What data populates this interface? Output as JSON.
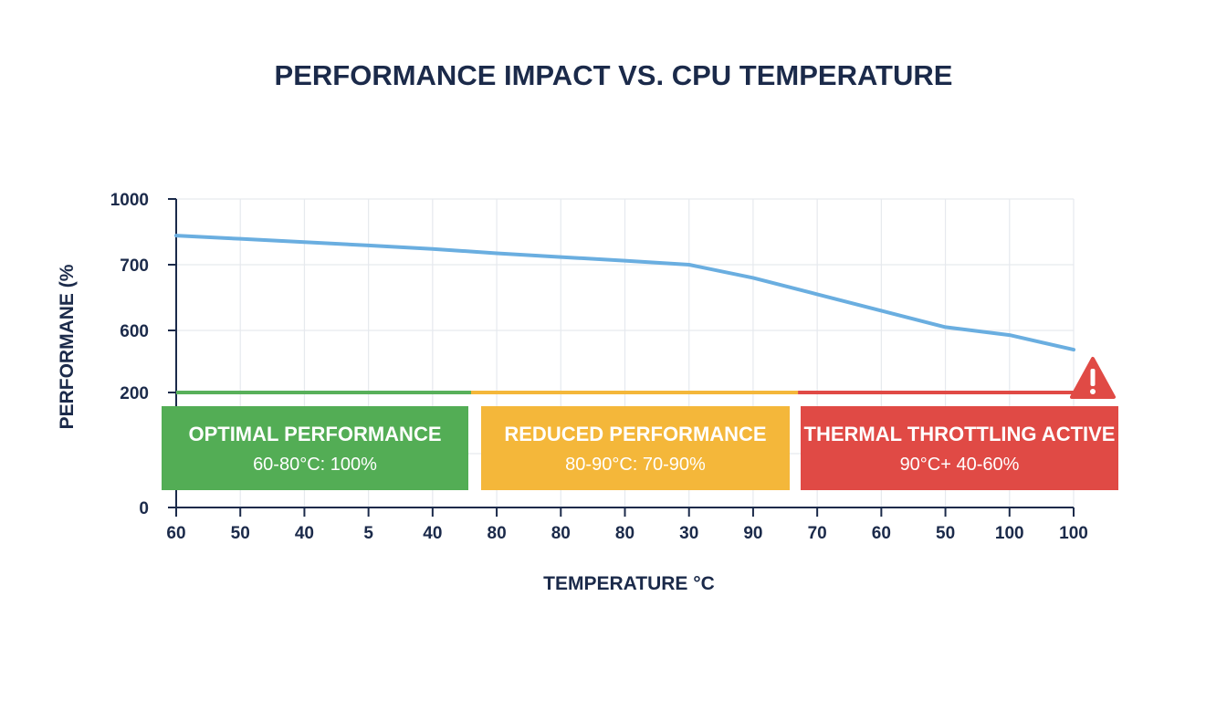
{
  "chart_data": {
    "type": "line",
    "title": "PERFORMANCE IMPACT VS. CPU TEMPERATURE",
    "xlabel": "TEMPERATURE °C",
    "ylabel": "PERFORMANE (%",
    "x_tick_labels": [
      "60",
      "50",
      "40",
      "5",
      "40",
      "80",
      "80",
      "80",
      "30",
      "90",
      "70",
      "60",
      "50",
      "100",
      "100"
    ],
    "y_tick_labels": [
      "0",
      "200",
      "600",
      "700",
      "1000"
    ],
    "grid": true,
    "series": [
      {
        "color": "#6aaee0",
        "values": [
          833,
          818,
          803,
          788,
          772,
          752,
          735,
          718,
          700,
          680,
          655,
          630,
          605,
          570,
          476
        ]
      }
    ],
    "threshold": {
      "value": 200,
      "segments": [
        {
          "from_index": 0,
          "to_index": 4.6,
          "color": "#58b05a"
        },
        {
          "from_index": 4.6,
          "to_index": 9.7,
          "color": "#f4b73a"
        },
        {
          "from_index": 9.7,
          "to_index": 14,
          "color": "#e04a45"
        }
      ]
    },
    "zones": [
      {
        "title": "OPTIMAL PERFORMANCE",
        "subtitle": "60-80°C: 100%",
        "color": "#53ad55"
      },
      {
        "title": "REDUCED PERFORMANCE",
        "subtitle": "80-90°C: 70-90%",
        "color": "#f4b73a"
      },
      {
        "title": "THERMAL THROTTLING ACTIVE",
        "subtitle": "90°C+ 40-60%",
        "color": "#e04a45"
      }
    ],
    "warning_icon": "warning-triangle-icon"
  }
}
